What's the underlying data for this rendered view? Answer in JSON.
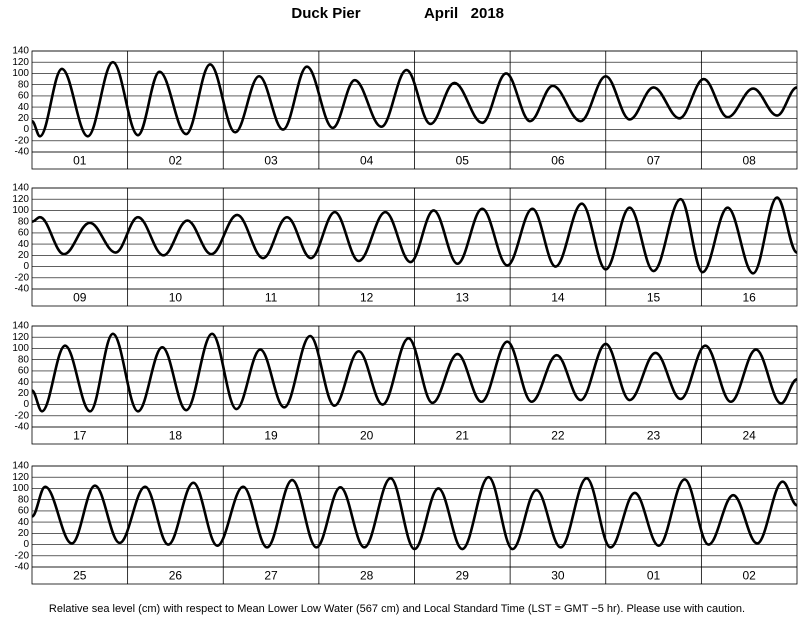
{
  "title": "Duck Pier",
  "period": "April   2018",
  "note": "Relative sea level (cm) with respect to Mean Lower Low Water (567 cm) and Local Standard Time (LST = GMT −5 hr). Please use with caution.",
  "chart_data": [
    {
      "type": "line",
      "color": "#000000",
      "grid": true,
      "categories": [
        "01",
        "02",
        "03",
        "04",
        "05",
        "06",
        "07",
        "08"
      ],
      "xlim": [
        0,
        192
      ],
      "ylim": [
        -40,
        140
      ],
      "yticks": [
        -40,
        -20,
        0,
        20,
        40,
        60,
        80,
        100,
        120,
        140
      ],
      "x": [
        0,
        2,
        7.5,
        14,
        20.3,
        26.6,
        32,
        38.7,
        44.7,
        51,
        57,
        63,
        69,
        75.5,
        81,
        87.7,
        94,
        100,
        106,
        113,
        119,
        125,
        130.7,
        137.7,
        144,
        150,
        156,
        162.5,
        168.6,
        174.6,
        181,
        187,
        192
      ],
      "values": [
        15,
        -12,
        108,
        -12,
        120,
        -10,
        103,
        -8,
        116,
        -5,
        95,
        0,
        112,
        3,
        88,
        5,
        106,
        10,
        83,
        12,
        100,
        15,
        78,
        15,
        95,
        18,
        75,
        20,
        90,
        22,
        73,
        25,
        75
      ]
    },
    {
      "type": "line",
      "color": "#000000",
      "grid": true,
      "categories": [
        "09",
        "10",
        "11",
        "12",
        "13",
        "14",
        "15",
        "16"
      ],
      "xlim": [
        0,
        192
      ],
      "ylim": [
        -40,
        140
      ],
      "yticks": [
        -40,
        -20,
        0,
        20,
        40,
        60,
        80,
        100,
        120,
        140
      ],
      "x": [
        0,
        2,
        8,
        14.5,
        21,
        26.6,
        33,
        39,
        45,
        51.5,
        58,
        64,
        70,
        76,
        82,
        88.7,
        95,
        100.8,
        106.8,
        113,
        119.3,
        125.6,
        131.4,
        138,
        144,
        150,
        156,
        162.8,
        168.3,
        174.6,
        181,
        187,
        192
      ],
      "values": [
        80,
        88,
        22,
        78,
        25,
        88,
        20,
        82,
        22,
        92,
        15,
        88,
        15,
        97,
        10,
        97,
        8,
        100,
        5,
        103,
        2,
        103,
        0,
        112,
        -5,
        105,
        -8,
        120,
        -10,
        105,
        -12,
        123,
        25
      ]
    },
    {
      "type": "line",
      "color": "#000000",
      "grid": true,
      "categories": [
        "17",
        "18",
        "19",
        "20",
        "21",
        "22",
        "23",
        "24"
      ],
      "xlim": [
        0,
        192
      ],
      "ylim": [
        -40,
        140
      ],
      "yticks": [
        -40,
        -20,
        0,
        20,
        40,
        60,
        80,
        100,
        120,
        140
      ],
      "x": [
        0,
        2.5,
        8.3,
        14.6,
        20.3,
        26.6,
        32.7,
        38.7,
        45.2,
        51.3,
        57.3,
        63.3,
        69.8,
        75.9,
        82,
        88,
        94.5,
        100.5,
        106.8,
        112.8,
        119.3,
        125.4,
        131.7,
        137.7,
        144,
        150,
        156.5,
        162.8,
        169,
        175.4,
        181.7,
        188,
        192
      ],
      "values": [
        25,
        -12,
        105,
        -12,
        126,
        -12,
        102,
        -10,
        126,
        -8,
        98,
        -5,
        122,
        -2,
        95,
        0,
        118,
        3,
        90,
        5,
        112,
        5,
        88,
        8,
        108,
        8,
        92,
        10,
        105,
        5,
        98,
        2,
        45
      ]
    },
    {
      "type": "line",
      "color": "#000000",
      "grid": true,
      "categories": [
        "25",
        "26",
        "27",
        "28",
        "29",
        "30",
        "01",
        "02"
      ],
      "xlim": [
        0,
        192
      ],
      "ylim": [
        -40,
        140
      ],
      "yticks": [
        -40,
        -20,
        0,
        20,
        40,
        60,
        80,
        100,
        120,
        140
      ],
      "x": [
        0,
        3.3,
        10,
        15.8,
        22,
        28.4,
        34.2,
        40.5,
        46.5,
        53,
        59,
        65.3,
        71.4,
        77.4,
        83.4,
        90,
        96,
        102,
        108,
        114.6,
        120.6,
        126.6,
        132.7,
        139.2,
        145.2,
        151.3,
        157.3,
        163.8,
        169.8,
        176,
        182,
        188.4,
        192
      ],
      "values": [
        50,
        103,
        2,
        105,
        3,
        103,
        0,
        110,
        -2,
        103,
        -5,
        115,
        -5,
        102,
        -5,
        118,
        -8,
        100,
        -8,
        120,
        -8,
        97,
        -5,
        118,
        -5,
        92,
        -2,
        116,
        0,
        88,
        2,
        112,
        70
      ]
    }
  ]
}
